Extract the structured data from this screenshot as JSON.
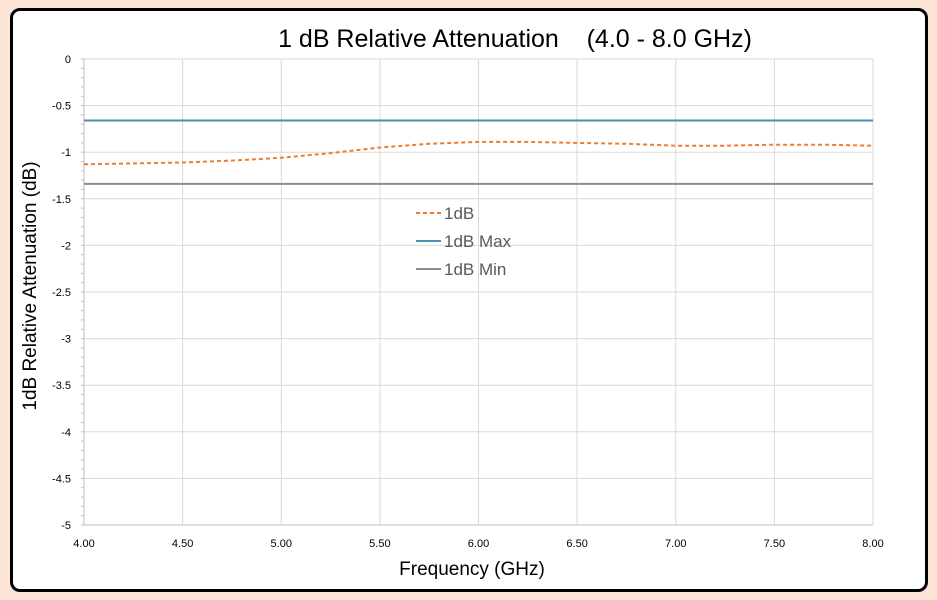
{
  "chart_data": {
    "type": "line",
    "title": "1 dB Relative Attenuation    (4.0 - 8.0 GHz)",
    "xlabel": "Frequency (GHz)",
    "ylabel": "1dB Relative Attenuation (dB)",
    "xlim": [
      4.0,
      8.0
    ],
    "ylim": [
      -5,
      0
    ],
    "x_ticks": [
      "4.00",
      "4.50",
      "5.00",
      "5.50",
      "6.00",
      "6.50",
      "7.00",
      "7.50",
      "8.00"
    ],
    "y_ticks": [
      "0",
      "-0.5",
      "-1",
      "-1.5",
      "-2",
      "-2.5",
      "-3",
      "-3.5",
      "-4",
      "-4.5",
      "-5"
    ],
    "grid": true,
    "legend_position": "center",
    "series": [
      {
        "name": "1dB",
        "color": "#ed7d31",
        "dash": "dashed",
        "x": [
          4.0,
          4.25,
          4.5,
          4.75,
          5.0,
          5.25,
          5.5,
          5.75,
          6.0,
          6.25,
          6.5,
          6.75,
          7.0,
          7.25,
          7.5,
          7.75,
          8.0
        ],
        "y": [
          -1.13,
          -1.12,
          -1.11,
          -1.09,
          -1.06,
          -1.01,
          -0.95,
          -0.91,
          -0.89,
          -0.89,
          -0.9,
          -0.91,
          -0.93,
          -0.93,
          -0.92,
          -0.92,
          -0.93
        ]
      },
      {
        "name": "1dB Max",
        "color": "#4a8fb0",
        "dash": "solid",
        "x": [
          4.0,
          8.0
        ],
        "y": [
          -0.66,
          -0.66
        ]
      },
      {
        "name": "1dB Min",
        "color": "#8c8c8c",
        "dash": "solid",
        "x": [
          4.0,
          8.0
        ],
        "y": [
          -1.34,
          -1.34
        ]
      }
    ]
  }
}
